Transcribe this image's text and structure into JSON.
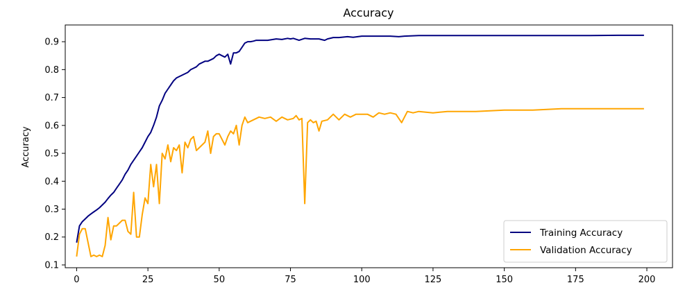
{
  "chart_data": {
    "type": "line",
    "title": "Accuracy",
    "xlabel": "",
    "ylabel": "Accuracy",
    "xlim": [
      -4,
      209
    ],
    "ylim": [
      0.09,
      0.96
    ],
    "xticks": [
      0,
      25,
      50,
      75,
      100,
      125,
      150,
      175,
      200
    ],
    "yticks": [
      0.1,
      0.2,
      0.3,
      0.4,
      0.5,
      0.6,
      0.7,
      0.8,
      0.9
    ],
    "grid": false,
    "legend_position": "bottom-right",
    "series": [
      {
        "name": "Training Accuracy",
        "color": "#000080",
        "x": [
          0,
          1,
          2,
          3,
          4,
          5,
          6,
          7,
          8,
          9,
          10,
          11,
          12,
          13,
          14,
          15,
          16,
          17,
          18,
          19,
          20,
          21,
          22,
          23,
          24,
          25,
          26,
          27,
          28,
          29,
          30,
          31,
          32,
          33,
          34,
          35,
          36,
          37,
          38,
          39,
          40,
          41,
          42,
          43,
          44,
          45,
          46,
          47,
          48,
          49,
          50,
          51,
          52,
          53,
          54,
          55,
          56,
          57,
          58,
          59,
          60,
          61,
          62,
          63,
          65,
          67,
          70,
          72,
          74,
          75,
          76,
          78,
          80,
          82,
          85,
          87,
          88,
          90,
          92,
          95,
          97,
          100,
          105,
          110,
          113,
          115,
          120,
          125,
          130,
          140,
          150,
          160,
          170,
          180,
          190,
          199
        ],
        "y": [
          0.18,
          0.24,
          0.255,
          0.265,
          0.275,
          0.283,
          0.29,
          0.297,
          0.305,
          0.315,
          0.325,
          0.338,
          0.35,
          0.36,
          0.375,
          0.39,
          0.405,
          0.425,
          0.44,
          0.46,
          0.475,
          0.49,
          0.505,
          0.52,
          0.54,
          0.56,
          0.575,
          0.6,
          0.63,
          0.67,
          0.69,
          0.715,
          0.73,
          0.745,
          0.76,
          0.77,
          0.775,
          0.78,
          0.785,
          0.79,
          0.8,
          0.805,
          0.81,
          0.82,
          0.825,
          0.83,
          0.83,
          0.835,
          0.84,
          0.85,
          0.855,
          0.85,
          0.845,
          0.855,
          0.82,
          0.86,
          0.86,
          0.865,
          0.88,
          0.895,
          0.9,
          0.9,
          0.902,
          0.905,
          0.905,
          0.905,
          0.91,
          0.908,
          0.912,
          0.91,
          0.912,
          0.905,
          0.912,
          0.91,
          0.91,
          0.905,
          0.91,
          0.915,
          0.915,
          0.918,
          0.916,
          0.92,
          0.92,
          0.92,
          0.918,
          0.92,
          0.922,
          0.922,
          0.922,
          0.922,
          0.922,
          0.922,
          0.922,
          0.922,
          0.923,
          0.923
        ]
      },
      {
        "name": "Validation Accuracy",
        "color": "#FFA500",
        "x": [
          0,
          1,
          2,
          3,
          4,
          5,
          6,
          7,
          8,
          9,
          10,
          11,
          12,
          13,
          14,
          15,
          16,
          17,
          18,
          19,
          20,
          21,
          22,
          23,
          24,
          25,
          26,
          27,
          28,
          29,
          30,
          31,
          32,
          33,
          34,
          35,
          36,
          37,
          38,
          39,
          40,
          41,
          42,
          43,
          44,
          45,
          46,
          47,
          48,
          49,
          50,
          51,
          52,
          53,
          54,
          55,
          56,
          57,
          58,
          59,
          60,
          62,
          64,
          66,
          68,
          70,
          72,
          74,
          76,
          77,
          78,
          79,
          80,
          81,
          82,
          83,
          84,
          85,
          86,
          88,
          90,
          92,
          94,
          96,
          98,
          100,
          102,
          104,
          106,
          108,
          110,
          112,
          114,
          116,
          118,
          120,
          125,
          130,
          140,
          150,
          160,
          170,
          180,
          190,
          195,
          198,
          199
        ],
        "y": [
          0.13,
          0.21,
          0.23,
          0.23,
          0.18,
          0.13,
          0.135,
          0.13,
          0.135,
          0.13,
          0.17,
          0.27,
          0.19,
          0.24,
          0.24,
          0.25,
          0.26,
          0.26,
          0.22,
          0.21,
          0.36,
          0.2,
          0.2,
          0.28,
          0.34,
          0.32,
          0.46,
          0.38,
          0.46,
          0.32,
          0.5,
          0.48,
          0.53,
          0.47,
          0.52,
          0.51,
          0.53,
          0.43,
          0.54,
          0.52,
          0.55,
          0.56,
          0.51,
          0.52,
          0.53,
          0.54,
          0.58,
          0.5,
          0.56,
          0.57,
          0.57,
          0.55,
          0.53,
          0.56,
          0.58,
          0.57,
          0.6,
          0.53,
          0.6,
          0.63,
          0.61,
          0.62,
          0.63,
          0.625,
          0.63,
          0.615,
          0.63,
          0.62,
          0.625,
          0.635,
          0.62,
          0.625,
          0.32,
          0.61,
          0.62,
          0.61,
          0.615,
          0.58,
          0.615,
          0.62,
          0.64,
          0.62,
          0.64,
          0.63,
          0.64,
          0.64,
          0.64,
          0.63,
          0.645,
          0.64,
          0.645,
          0.64,
          0.61,
          0.65,
          0.645,
          0.65,
          0.645,
          0.65,
          0.65,
          0.655,
          0.655,
          0.66,
          0.66,
          0.66,
          0.66,
          0.66,
          0.66
        ]
      }
    ]
  }
}
